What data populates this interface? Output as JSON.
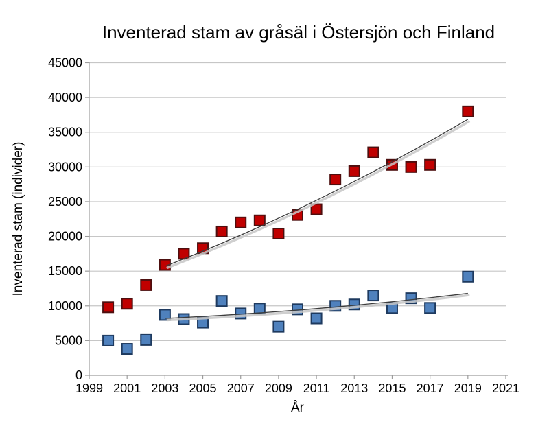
{
  "chart_data": {
    "type": "scatter",
    "title": "Inventerad stam av gråsäl i Östersjön och Finland",
    "xlabel": "År",
    "ylabel": "Inventerad stam (individer)",
    "xlim": [
      1999,
      2021
    ],
    "ylim": [
      0,
      45000
    ],
    "x_ticks": [
      1999,
      2001,
      2003,
      2005,
      2007,
      2009,
      2011,
      2013,
      2015,
      2017,
      2019,
      2021
    ],
    "y_ticks": [
      0,
      5000,
      10000,
      15000,
      20000,
      25000,
      30000,
      35000,
      40000,
      45000
    ],
    "grid": "horizontal",
    "legend": "none",
    "series": [
      {
        "id": "red-series",
        "marker": "square",
        "fill": "#c00000",
        "border": "#4d0f0f",
        "x": [
          2000,
          2001,
          2002,
          2003,
          2004,
          2005,
          2006,
          2007,
          2008,
          2009,
          2010,
          2011,
          2012,
          2013,
          2014,
          2015,
          2016,
          2017,
          2019
        ],
        "y": [
          9800,
          10300,
          13000,
          15900,
          17500,
          18300,
          20700,
          22000,
          22300,
          20400,
          23100,
          23900,
          28200,
          29400,
          32100,
          30300,
          30000,
          30300,
          38000
        ],
        "trendline": {
          "shape": "curved",
          "p_start": [
            2003,
            15700
          ],
          "p_mid": [
            2011,
            25200
          ],
          "p_end": [
            2019,
            36850
          ]
        }
      },
      {
        "id": "blue-series",
        "marker": "square",
        "fill": "#4f81bd",
        "border": "#1e3a5f",
        "x": [
          2000,
          2001,
          2002,
          2003,
          2004,
          2005,
          2006,
          2007,
          2008,
          2009,
          2010,
          2011,
          2012,
          2013,
          2014,
          2015,
          2016,
          2017,
          2019
        ],
        "y": [
          5000,
          3800,
          5100,
          8700,
          8100,
          7600,
          10700,
          8900,
          9600,
          7000,
          9500,
          8200,
          10000,
          10200,
          11500,
          9700,
          11100,
          9700,
          14200
        ],
        "trendline": {
          "shape": "curved",
          "p_start": [
            2003,
            8200
          ],
          "p_mid": [
            2011,
            9600
          ],
          "p_end": [
            2019,
            11800
          ]
        }
      }
    ]
  },
  "colors": {
    "background": "#ffffff",
    "gridline": "#c6c6c6",
    "axis": "#9c9c9c",
    "text": "#000000",
    "trendline": "#3c3c3c",
    "trendline_shadow": "#c7c7c7"
  }
}
